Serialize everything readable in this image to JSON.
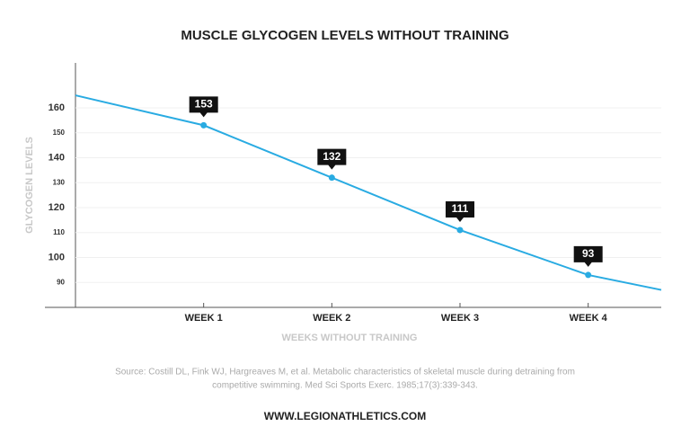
{
  "chart_data": {
    "type": "line",
    "title": "MUSCLE GLYCOGEN LEVELS WITHOUT TRAINING",
    "x_label": "WEEKS WITHOUT TRAINING",
    "y_label": "GLYCOGEN LEVELS",
    "x": [
      0,
      1,
      2,
      3,
      4,
      4.57
    ],
    "values": [
      165,
      153,
      132,
      111,
      93,
      87
    ],
    "color": "#29abe2",
    "xlim": [
      0,
      4.57
    ],
    "xticks": [
      {
        "value": 1,
        "label": "WEEK 1"
      },
      {
        "value": 2,
        "label": "WEEK 2"
      },
      {
        "value": 3,
        "label": "WEEK 3"
      },
      {
        "value": 4,
        "label": "WEEK 4"
      }
    ],
    "ylim": [
      80,
      178
    ],
    "yticks": [
      90,
      100,
      110,
      120,
      130,
      140,
      150,
      160
    ],
    "grid": true,
    "source": [
      "Source: Costill DL, Fink WJ, Hargreaves M, et al. Metabolic characteristics of skeletal muscle during detraining from",
      "competitive swimming. Med Sci Sports Exerc. 1985;17(3):339-343."
    ],
    "footer": "WWW.LEGIONATHLETICS.COM"
  }
}
